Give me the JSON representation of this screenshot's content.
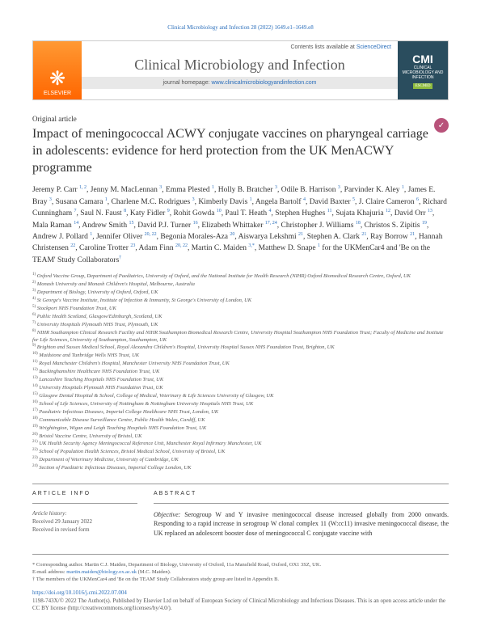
{
  "running_head": "Clinical Microbiology and Infection 28 (2022) 1649.e1–1649.e8",
  "masthead": {
    "publisher": "ELSEVIER",
    "contents_text": "Contents lists available at ",
    "contents_link": "ScienceDirect",
    "journal_title": "Clinical Microbiology and Infection",
    "homepage_text": "journal homepage: ",
    "homepage_link": "www.clinicalmicrobiologyandinfection.com",
    "logo_abbr": "CMI",
    "logo_sub": "CLINICAL MICROBIOLOGY AND INFECTION",
    "badge": "ESCMID"
  },
  "article_type": "Original article",
  "title": "Impact of meningococcal ACWY conjugate vaccines on pharyngeal carriage in adolescents: evidence for herd protection from the UK MenACWY programme",
  "authors_html": "Jeremy P. Carr <sup>1, 2</sup>, Jenny M. MacLennan <sup>3</sup>, Emma Plested <sup>1</sup>, Holly B. Bratcher <sup>3</sup>, Odile B. Harrison <sup>3</sup>, Parvinder K. Aley <sup>1</sup>, James E. Bray <sup>3</sup>, Susana Camara <sup>1</sup>, Charlene M.C. Rodrigues <sup>3</sup>, Kimberly Davis <sup>1</sup>, Angela Bartolf <sup>4</sup>, David Baxter <sup>5</sup>, J. Claire Cameron <sup>6</sup>, Richard Cunningham <sup>7</sup>, Saul N. Faust <sup>8</sup>, Katy Fidler <sup>9</sup>, Rohit Gowda <sup>10</sup>, Paul T. Heath <sup>4</sup>, Stephen Hughes <sup>11</sup>, Sujata Khajuria <sup>12</sup>, David Orr <sup>13</sup>, Mala Raman <sup>14</sup>, Andrew Smith <sup>15</sup>, David P.J. Turner <sup>16</sup>, Elizabeth Whittaker <sup>17, 24</sup>, Christopher J. Williams <sup>18</sup>, Christos S. Zipitis <sup>19</sup>, Andrew J. Pollard <sup>1</sup>, Jennifer Oliver <sup>20, 22</sup>, Begonia Morales-Aza <sup>20</sup>, Aiswarya Lekshmi <sup>21</sup>, Stephen A. Clark <sup>21</sup>, Ray Borrow <sup>21</sup>, Hannah Christensen <sup>22</sup>, Caroline Trotter <sup>23</sup>, Adam Finn <sup>20, 22</sup>, Martin C. Maiden <sup>3,*</sup>, Matthew D. Snape <sup>1</sup> for the UKMenCar4 and 'Be on the TEAM' Study Collaborators<sup>†</sup>",
  "affiliations": [
    "1) Oxford Vaccine Group, Department of Paediatrics, University of Oxford, and the National Institute for Health Research (NIHR) Oxford Biomedical Research Centre, Oxford, UK",
    "2) Monash University and Monash Children's Hospital, Melbourne, Australia",
    "3) Department of Biology, University of Oxford, Oxford, UK",
    "4) St George's Vaccine Institute, Institute of Infection & Immunity, St George's University of London, UK",
    "5) Stockport NHS Foundation Trust, UK",
    "6) Public Health Scotland, Glasgow/Edinburgh, Scotland, UK",
    "7) University Hospitals Plymouth NHS Trust, Plymouth, UK",
    "8) NIHR Southampton Clinical Research Facility and NIHR Southampton Biomedical Research Centre, University Hospital Southampton NHS Foundation Trust; Faculty of Medicine and Institute for Life Sciences, University of Southampton, Southampton, UK",
    "9) Brighton and Sussex Medical School, Royal Alexandra Children's Hospital, University Hospital Sussex NHS Foundation Trust, Brighton, UK",
    "10) Maidstone and Tunbridge Wells NHS Trust, UK",
    "11) Royal Manchester Children's Hospital, Manchester University NHS Foundation Trust, UK",
    "12) Buckinghamshire Healthcare NHS Foundation Trust, UK",
    "13) Lancashire Teaching Hospitals NHS Foundation Trust, UK",
    "14) University Hospitals Plymouth NHS Foundation Trust, UK",
    "15) Glasgow Dental Hospital & School, College of Medical, Veterinary & Life Sciences University of Glasgow, UK",
    "16) School of Life Sciences, University of Nottingham & Nottingham University Hospitals NHS Trust, UK",
    "17) Paediatric Infectious Diseases, Imperial College Healthcare NHS Trust, London, UK",
    "18) Communicable Disease Surveillance Centre, Public Health Wales, Cardiff, UK",
    "19) Wrightington, Wigan and Leigh Teaching Hospitals NHS Foundation Trust, UK",
    "20) Bristol Vaccine Centre, University of Bristol, UK",
    "21) UK Health Security Agency Meningococcal Reference Unit, Manchester Royal Infirmary Manchester, UK",
    "22) School of Population Health Sciences, Bristol Medical School, University of Bristol, UK",
    "23) Department of Veterinary Medicine, University of Cambridge, UK",
    "24) Section of Paediatric Infectious Diseases, Imperial College London, UK"
  ],
  "article_info": {
    "heading": "ARTICLE INFO",
    "history_label": "Article history:",
    "received": "Received 29 January 2022",
    "revised": "Received in revised form"
  },
  "abstract": {
    "heading": "ABSTRACT",
    "objective_label": "Objective:",
    "objective_text": " Serogroup W and Y invasive meningococcal disease increased globally from 2000 onwards. Responding to a rapid increase in serogroup W clonal complex 11 (W:cc11) invasive meningococcal disease, the UK replaced an adolescent booster dose of meningococcal C conjugate vaccine with"
  },
  "footer": {
    "corresponding": "* Corresponding author. Martin C.J. Maiden, Department of Biology, University of Oxford, 11a Mansfield Road, Oxford, OX1 3SZ, UK.",
    "email_label": "E-mail address: ",
    "email": "martin.maiden@biology.ox.ac.uk",
    "email_suffix": " (M.C. Maiden).",
    "collaborators": "† The members of the UKMenCar4 and 'Be on the TEAM' Study Collaborators study group are listed in Appendix B.",
    "doi": "https://doi.org/10.1016/j.cmi.2022.07.004",
    "copyright": "1198-743X/© 2022 The Author(s). Published by Elsevier Ltd on behalf of European Society of Clinical Microbiology and Infectious Diseases. This is an open access article under the CC BY license (http://creativecommons.org/licenses/by/4.0/)."
  }
}
